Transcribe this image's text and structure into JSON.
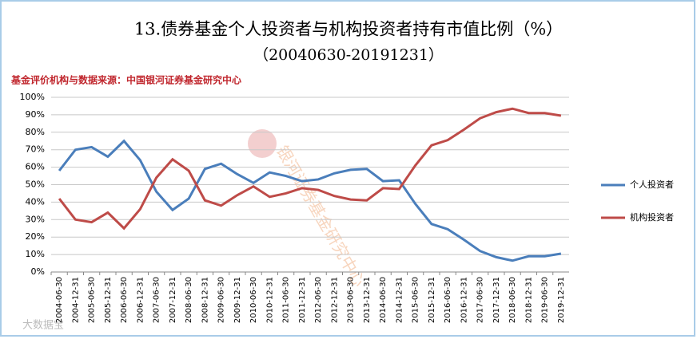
{
  "chart_data": {
    "type": "line",
    "title": "13.债券基金个人投资者与机构投资者持有市值比例（%）",
    "subtitle": "（20040630-20191231）",
    "source": "基金评价机构与数据来源：中国银河证券基金研究中心",
    "watermark": "银河证券基金研究中心",
    "corner_mark": "大数据宝",
    "categories": [
      "2004-06-30",
      "2004-12-31",
      "2005-06-30",
      "2005-12-31",
      "2006-06-30",
      "2006-12-31",
      "2007-06-30",
      "2007-12-31",
      "2008-06-30",
      "2008-12-31",
      "2009-06-30",
      "2009-12-31",
      "2010-06-30",
      "2010-12-31",
      "2011-06-30",
      "2011-12-31",
      "2012-06-30",
      "2012-12-31",
      "2013-06-30",
      "2013-12-31",
      "2014-06-30",
      "2014-12-31",
      "2015-06-30",
      "2015-12-31",
      "2016-06-30",
      "2016-12-31",
      "2017-06-30",
      "2017-12-31",
      "2018-06-30",
      "2018-12-31",
      "2019-06-30",
      "2019-12-31"
    ],
    "series": [
      {
        "name": "个人投资者",
        "color": "#4a7ebb",
        "values": [
          58,
          70,
          71.5,
          66,
          75,
          64,
          46,
          35.5,
          42,
          59,
          62,
          56,
          51,
          57,
          55,
          52,
          53,
          56.5,
          58.5,
          59,
          52,
          52.5,
          39,
          27.5,
          24.5,
          18.5,
          12,
          8.5,
          6.5,
          9,
          9,
          10.5
        ]
      },
      {
        "name": "机构投资者",
        "color": "#be4b48",
        "values": [
          42,
          30,
          28.5,
          34,
          25,
          36,
          54,
          64.5,
          58,
          41,
          38,
          44,
          49,
          43,
          45,
          48,
          47,
          43.5,
          41.5,
          41,
          48,
          47.5,
          61,
          72.5,
          75.5,
          81.5,
          88,
          91.5,
          93.5,
          91,
          91,
          89.5
        ]
      }
    ],
    "ylim": [
      0,
      100
    ],
    "yticks": [
      {
        "value": 0,
        "label": "0%"
      },
      {
        "value": 10,
        "label": "10%"
      },
      {
        "value": 20,
        "label": "20%"
      },
      {
        "value": 30,
        "label": "30%"
      },
      {
        "value": 40,
        "label": "40%"
      },
      {
        "value": 50,
        "label": "50%"
      },
      {
        "value": 60,
        "label": "60%"
      },
      {
        "value": 70,
        "label": "70%"
      },
      {
        "value": 80,
        "label": "80%"
      },
      {
        "value": 90,
        "label": "90%"
      },
      {
        "value": 100,
        "label": "100%"
      }
    ],
    "grid": true
  }
}
